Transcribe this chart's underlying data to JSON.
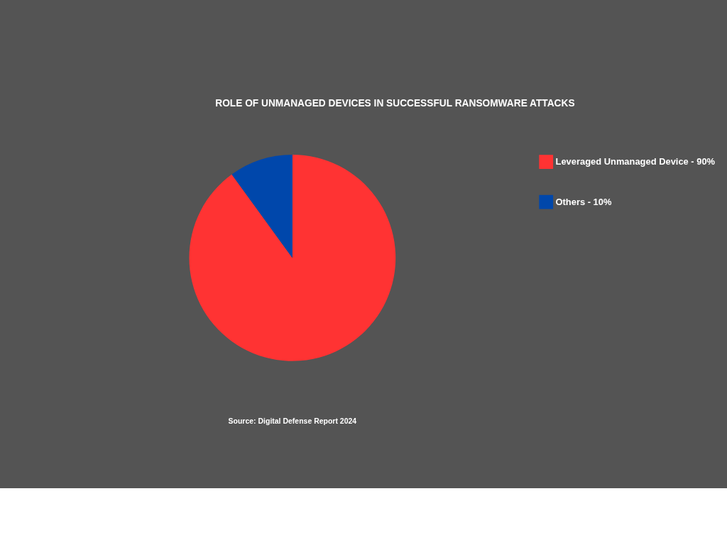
{
  "chart_data": {
    "type": "pie",
    "title": "ROLE OF UNMANAGED DEVICES IN SUCCESSFUL RANSOMWARE ATTACKS",
    "categories": [
      "Leveraged Unmanaged Device - 90%",
      "Others - 10%"
    ],
    "values": [
      90,
      10
    ],
    "colors": [
      "#ff3333",
      "#0047ab"
    ],
    "legend": "right",
    "annotations": [
      "Source: Digital Defense Report 2024"
    ]
  }
}
